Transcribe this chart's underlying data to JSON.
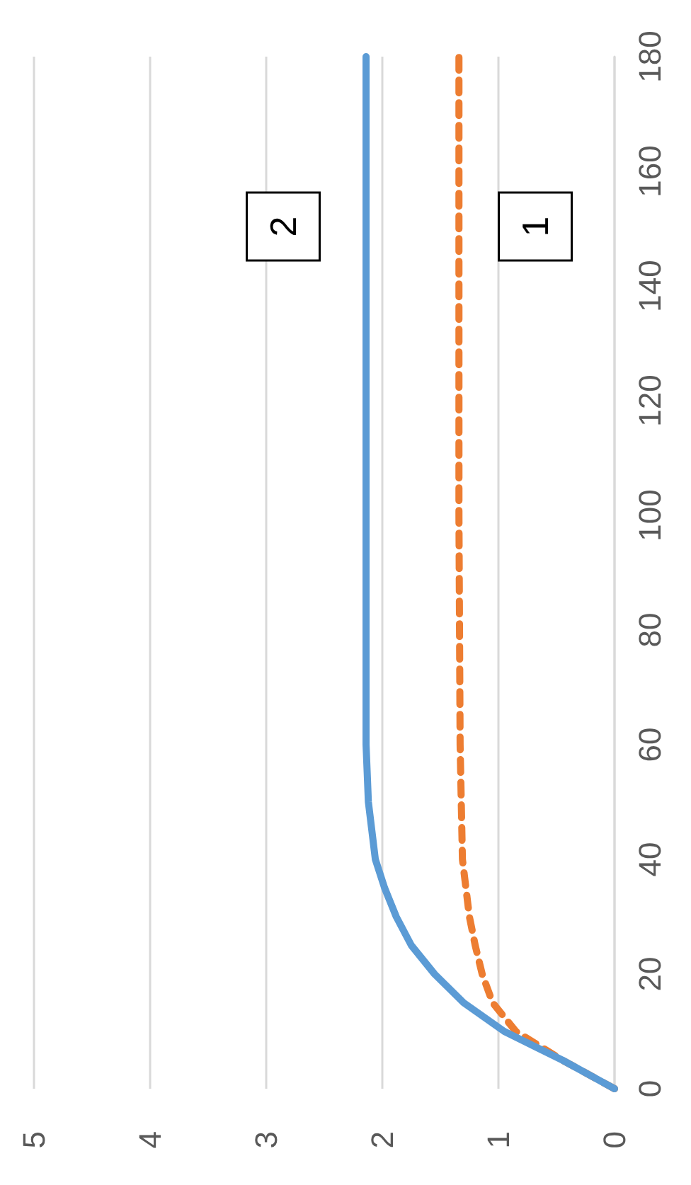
{
  "chart_data": {
    "type": "line",
    "xlim": [
      5,
      0
    ],
    "xticks": [
      5,
      4,
      3,
      2,
      1,
      0
    ],
    "ylim": [
      0,
      180
    ],
    "yticks": [
      0,
      20,
      40,
      60,
      80,
      100,
      120,
      140,
      160,
      180
    ],
    "grid": "x",
    "marker": "none",
    "series": [
      {
        "color": "#ed7d31",
        "line_style": "dashed",
        "x": [
          0,
          0.45,
          0.85,
          1.05,
          1.14,
          1.2,
          1.25,
          1.31,
          1.33,
          1.34,
          1.34
        ],
        "values": [
          0,
          5,
          10,
          15,
          20,
          25,
          30,
          40,
          60,
          100,
          180
        ]
      },
      {
        "color": "#5b9bd5",
        "line_style": "solid",
        "x": [
          0,
          0.45,
          0.95,
          1.3,
          1.55,
          1.75,
          1.88,
          1.98,
          2.06,
          2.12,
          2.14,
          2.14,
          2.14
        ],
        "values": [
          0,
          5,
          10,
          15,
          20,
          25,
          30,
          35,
          40,
          50,
          60,
          80,
          180
        ]
      }
    ],
    "annotations": [
      "1",
      "2"
    ]
  }
}
